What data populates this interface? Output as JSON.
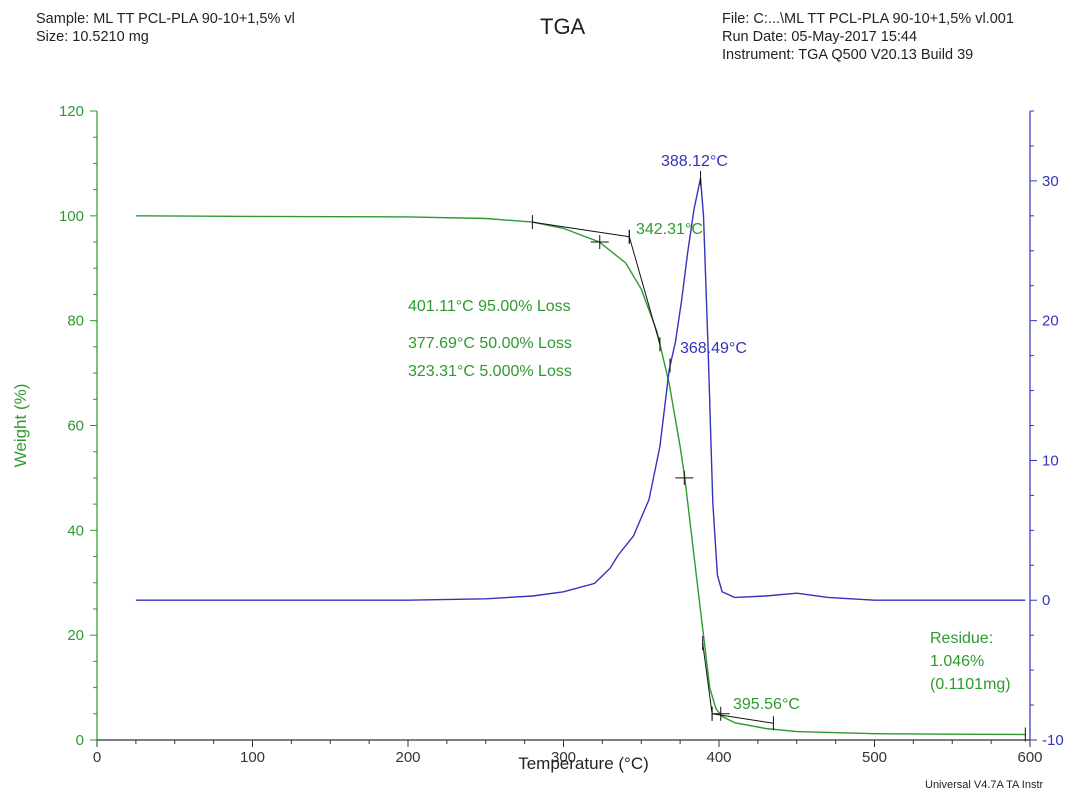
{
  "header": {
    "sample": "Sample: ML TT PCL-PLA 90-10+1,5% vl",
    "size": "Size:  10.5210 mg",
    "title": "TGA",
    "file": "File: C:...\\ML TT PCL-PLA 90-10+1,5% vl.001",
    "run_date": "Run Date: 05-May-2017 15:44",
    "instrument": "Instrument: TGA Q500 V20.13 Build 39"
  },
  "footer": "Universal V4.7A TA Instr",
  "colors": {
    "weight": "#2e9a2e",
    "deriv": "#3333bb",
    "text": "#222222",
    "tangent": "#111111"
  },
  "chart_data": {
    "type": "line",
    "xlabel": "Temperature (°C)",
    "ylabel": "Weight (%)",
    "xlim": [
      0,
      600
    ],
    "ylim": [
      0,
      120
    ],
    "y2lim": [
      -10,
      35
    ],
    "x_ticks": [
      0,
      100,
      200,
      300,
      400,
      500,
      600
    ],
    "y_ticks": [
      0,
      20,
      40,
      60,
      80,
      100,
      120
    ],
    "y2_ticks": [
      -10,
      0,
      10,
      20,
      30
    ],
    "series": [
      {
        "axis": "left",
        "color": "#2e9a2e",
        "x": [
          25,
          100,
          200,
          250,
          280,
          300,
          323,
          340,
          350,
          360,
          368,
          375,
          378,
          382,
          386,
          390,
          394,
          398,
          402,
          410,
          430,
          450,
          500,
          550,
          597
        ],
        "y": [
          100,
          99.9,
          99.8,
          99.5,
          98.8,
          97.6,
          95,
          91,
          86,
          78,
          68,
          56,
          50,
          40,
          30,
          20,
          10,
          6,
          4.5,
          3.3,
          2.2,
          1.6,
          1.2,
          1.1,
          1.05
        ]
      },
      {
        "axis": "right",
        "color": "#3333bb",
        "x": [
          25,
          100,
          200,
          250,
          280,
          300,
          320,
          330,
          335,
          345,
          355,
          362,
          368,
          372,
          376,
          380,
          384,
          387,
          388.12,
          390,
          393,
          396,
          399,
          402,
          410,
          430,
          450,
          470,
          500,
          550,
          597
        ],
        "y": [
          0,
          0,
          0,
          0.1,
          0.3,
          0.6,
          1.2,
          2.3,
          3.2,
          4.6,
          7.2,
          11,
          16.5,
          18.5,
          21.5,
          25,
          28,
          29.6,
          30.2,
          27.5,
          18,
          7,
          1.8,
          0.6,
          0.2,
          0.3,
          0.5,
          0.2,
          0,
          0,
          0
        ]
      }
    ],
    "annotations": [
      {
        "text": "388.12°C",
        "color": "deriv",
        "x": 388.12,
        "y2": 30.2
      },
      {
        "text": "342.31°C",
        "color": "weight",
        "x": 342.31,
        "y": 96
      },
      {
        "text": "368.49°C",
        "color": "deriv",
        "x": 368.49,
        "y2": 16.8
      },
      {
        "text": "401.11°C 95.00% Loss",
        "color": "weight"
      },
      {
        "text": "377.69°C 50.00% Loss",
        "color": "weight"
      },
      {
        "text": "323.31°C 5.000% Loss",
        "color": "weight"
      },
      {
        "text": "395.56°C",
        "color": "weight",
        "x": 395.56,
        "y": 5
      },
      {
        "text": "Residue:",
        "color": "weight"
      },
      {
        "text": "1.046%",
        "color": "weight"
      },
      {
        "text": "(0.1101mg)",
        "color": "weight"
      }
    ],
    "markers": [
      {
        "x": 323.31,
        "y": 95
      },
      {
        "x": 377.69,
        "y": 50
      },
      {
        "x": 401.11,
        "y": 5
      }
    ],
    "tangent_lines": [
      {
        "x": [
          280,
          342.31
        ],
        "y": [
          98.8,
          96
        ]
      },
      {
        "x": [
          342.31,
          362
        ],
        "y": [
          96,
          75.5
        ]
      },
      {
        "x": [
          389.5,
          395.56
        ],
        "y": [
          18.5,
          5
        ]
      },
      {
        "x": [
          395.56,
          435
        ],
        "y": [
          5,
          3.2
        ]
      }
    ]
  }
}
